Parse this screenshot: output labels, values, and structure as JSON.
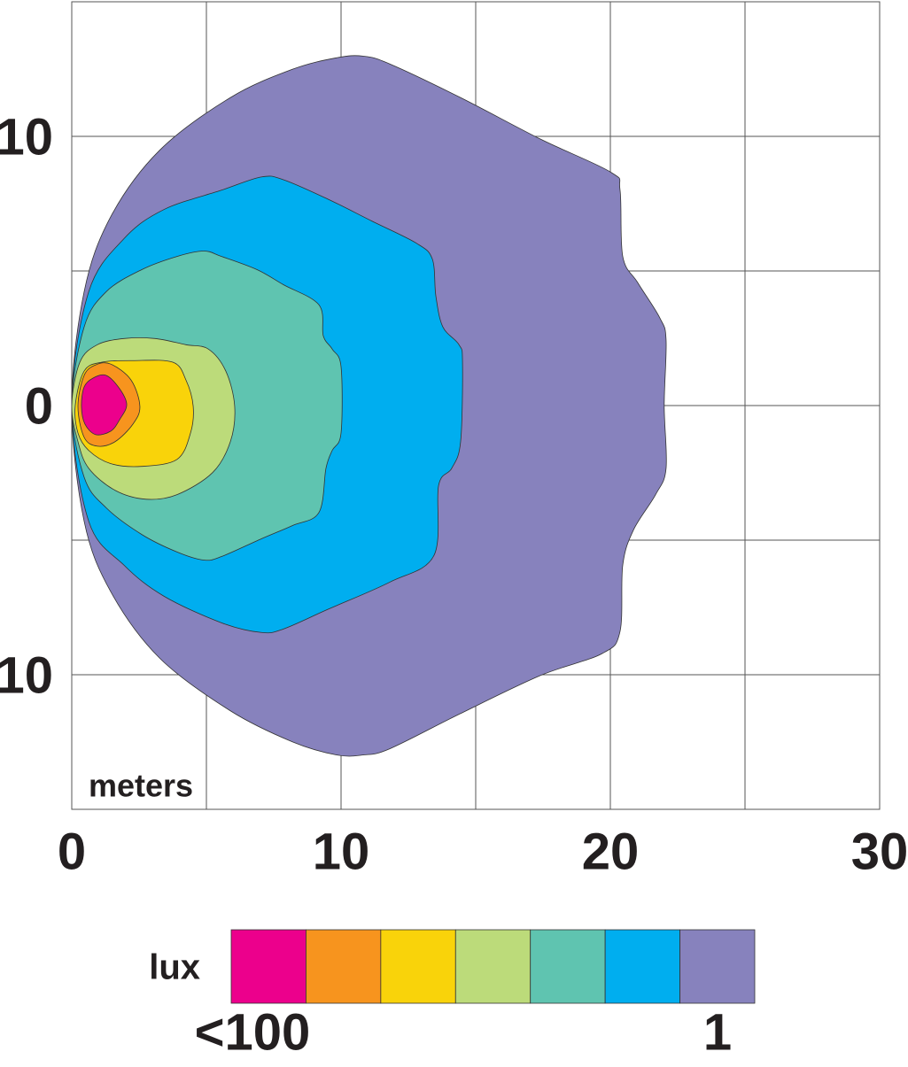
{
  "chart_data": {
    "type": "contour",
    "x_unit_label": "meters",
    "xlim": [
      0,
      30
    ],
    "ylim": [
      -15,
      15
    ],
    "xticks": [
      0,
      10,
      20,
      30
    ],
    "yticks": [
      {
        "value": -10,
        "label": "10"
      },
      0,
      10
    ],
    "xgrid": [
      0,
      5,
      10,
      15,
      20,
      25,
      30
    ],
    "ygrid": [
      -15,
      -10,
      -5,
      0,
      5,
      10,
      15
    ],
    "contours": [
      {
        "color": "#8782bd",
        "points": [
          [
            0,
            0
          ],
          [
            0.46,
            4.23
          ],
          [
            1.45,
            7.02
          ],
          [
            3.26,
            9.48
          ],
          [
            5.89,
            11.44
          ],
          [
            8.19,
            12.49
          ],
          [
            9.84,
            12.92
          ],
          [
            10.82,
            12.98
          ],
          [
            11.81,
            12.69
          ],
          [
            14.44,
            11.44
          ],
          [
            17.4,
            9.9
          ],
          [
            20.03,
            8.66
          ],
          [
            20.36,
            8.0
          ],
          [
            20.46,
            5.54
          ],
          [
            21.02,
            4.56
          ],
          [
            21.84,
            3.25
          ],
          [
            22.07,
            2.43
          ],
          [
            22.0,
            0
          ],
          [
            22.07,
            -2.33
          ],
          [
            21.68,
            -3.31
          ],
          [
            20.86,
            -4.62
          ],
          [
            20.46,
            -5.93
          ],
          [
            20.36,
            -8.39
          ],
          [
            19.7,
            -9.21
          ],
          [
            17.4,
            -10.03
          ],
          [
            14.44,
            -11.44
          ],
          [
            11.81,
            -12.75
          ],
          [
            10.82,
            -12.98
          ],
          [
            9.84,
            -12.98
          ],
          [
            8.19,
            -12.49
          ],
          [
            5.89,
            -11.34
          ],
          [
            3.26,
            -9.38
          ],
          [
            1.45,
            -6.92
          ],
          [
            0.46,
            -4.3
          ]
        ]
      },
      {
        "color": "#00aeef",
        "points": [
          [
            0,
            0
          ],
          [
            0.63,
            4.23
          ],
          [
            1.94,
            6.2
          ],
          [
            3.42,
            7.28
          ],
          [
            5.56,
            8.0
          ],
          [
            7.04,
            8.49
          ],
          [
            7.86,
            8.39
          ],
          [
            9.51,
            7.67
          ],
          [
            11.15,
            6.85
          ],
          [
            12.8,
            6.03
          ],
          [
            13.39,
            5.44
          ],
          [
            13.52,
            4.07
          ],
          [
            13.78,
            2.92
          ],
          [
            14.38,
            2.26
          ],
          [
            14.51,
            1.61
          ],
          [
            14.44,
            -1.34
          ],
          [
            14.11,
            -2.33
          ],
          [
            13.62,
            -2.98
          ],
          [
            13.45,
            -5.57
          ],
          [
            11.81,
            -6.56
          ],
          [
            9.51,
            -7.57
          ],
          [
            7.86,
            -8.3
          ],
          [
            7.04,
            -8.43
          ],
          [
            5.56,
            -8.07
          ],
          [
            3.42,
            -7.08
          ],
          [
            1.94,
            -5.93
          ],
          [
            0.63,
            -4.3
          ]
        ]
      },
      {
        "color": "#5fc4b0",
        "points": [
          [
            0,
            0
          ],
          [
            0.46,
            2.92
          ],
          [
            1.28,
            4.23
          ],
          [
            2.6,
            5.05
          ],
          [
            3.91,
            5.54
          ],
          [
            4.9,
            5.74
          ],
          [
            5.56,
            5.54
          ],
          [
            6.88,
            5.05
          ],
          [
            7.86,
            4.49
          ],
          [
            9.18,
            3.74
          ],
          [
            9.34,
            2.59
          ],
          [
            9.67,
            2.1
          ],
          [
            10.0,
            1.44
          ],
          [
            10.0,
            -1.02
          ],
          [
            9.67,
            -1.67
          ],
          [
            9.44,
            -2.33
          ],
          [
            9.18,
            -3.97
          ],
          [
            8.19,
            -4.46
          ],
          [
            7.04,
            -4.95
          ],
          [
            5.56,
            -5.61
          ],
          [
            4.9,
            -5.74
          ],
          [
            3.91,
            -5.44
          ],
          [
            2.6,
            -4.79
          ],
          [
            1.28,
            -3.8
          ],
          [
            0.46,
            -2.66
          ]
        ]
      },
      {
        "color": "#bcdb7a",
        "points": [
          [
            0,
            0
          ],
          [
            0.3,
            1.61
          ],
          [
            0.95,
            2.26
          ],
          [
            1.94,
            2.49
          ],
          [
            3.09,
            2.49
          ],
          [
            4.24,
            2.26
          ],
          [
            5.07,
            2.1
          ],
          [
            5.72,
            1.28
          ],
          [
            6.05,
            -0.03
          ],
          [
            5.89,
            -1.34
          ],
          [
            5.23,
            -2.49
          ],
          [
            3.91,
            -3.31
          ],
          [
            2.76,
            -3.48
          ],
          [
            1.61,
            -3.15
          ],
          [
            0.63,
            -2.33
          ],
          [
            0.23,
            -1.34
          ]
        ]
      },
      {
        "color": "#f9d30a",
        "points": [
          [
            0.13,
            0
          ],
          [
            0.46,
            1.28
          ],
          [
            1.12,
            1.61
          ],
          [
            2.27,
            1.67
          ],
          [
            3.75,
            1.61
          ],
          [
            4.24,
            0.95
          ],
          [
            4.51,
            -0.03
          ],
          [
            4.41,
            -1.02
          ],
          [
            3.91,
            -2.0
          ],
          [
            2.6,
            -2.26
          ],
          [
            1.45,
            -2.16
          ],
          [
            0.63,
            -1.67
          ],
          [
            0.23,
            -1.02
          ]
        ]
      },
      {
        "color": "#f7941e",
        "points": [
          [
            0.23,
            -0.03
          ],
          [
            0.46,
            1.12
          ],
          [
            0.89,
            1.51
          ],
          [
            1.45,
            1.54
          ],
          [
            2.2,
            0.95
          ],
          [
            2.53,
            -0.03
          ],
          [
            2.27,
            -0.69
          ],
          [
            1.61,
            -1.34
          ],
          [
            0.95,
            -1.51
          ],
          [
            0.46,
            -1.18
          ]
        ]
      },
      {
        "color": "#ec008c",
        "points": [
          [
            0.36,
            -0.03
          ],
          [
            0.46,
            0.69
          ],
          [
            0.79,
            1.02
          ],
          [
            1.28,
            1.12
          ],
          [
            1.78,
            0.62
          ],
          [
            2.04,
            0.03
          ],
          [
            1.78,
            -0.52
          ],
          [
            1.45,
            -0.95
          ],
          [
            0.89,
            -1.08
          ],
          [
            0.49,
            -0.69
          ]
        ]
      }
    ],
    "legend": {
      "title": "lux",
      "min_label": "<100",
      "max_label": "1"
    }
  }
}
